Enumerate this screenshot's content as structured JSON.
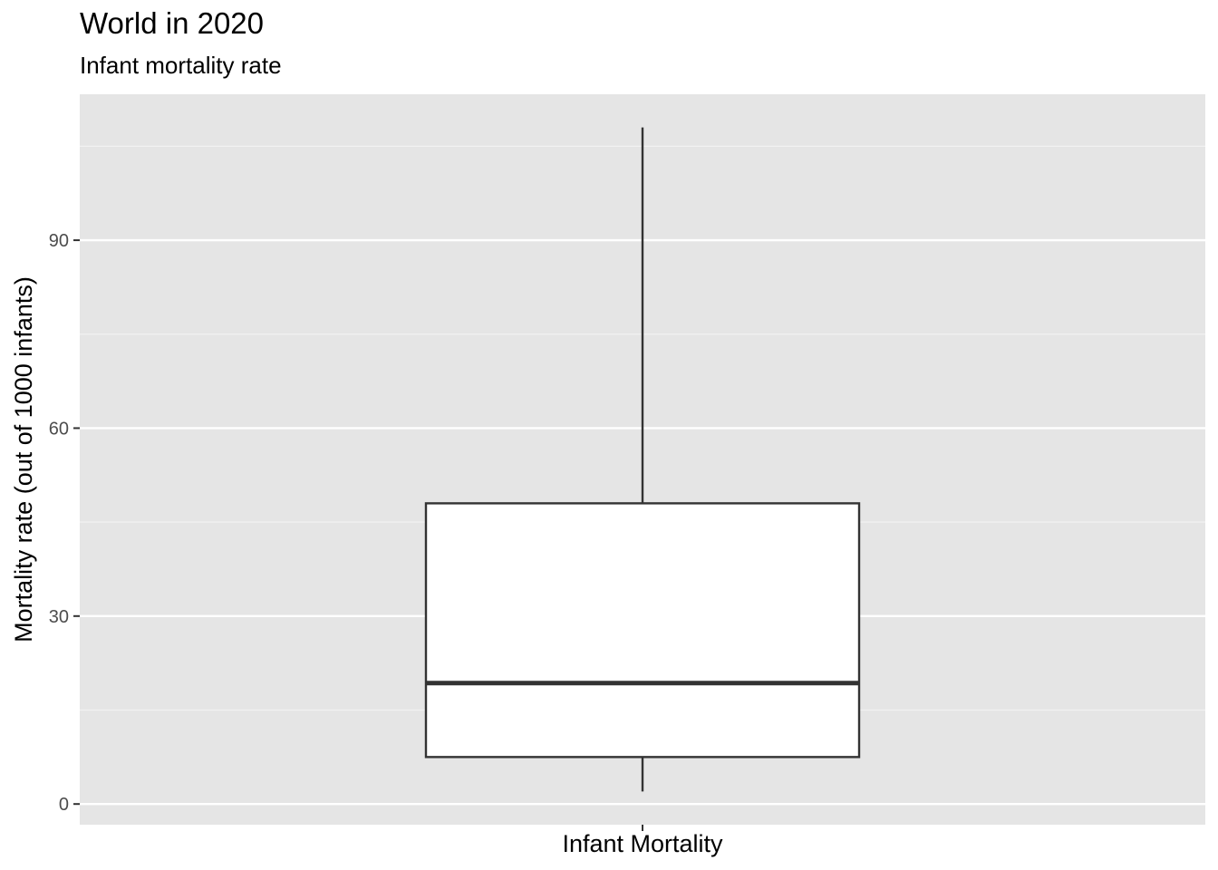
{
  "chart_data": {
    "type": "box",
    "title": "World in 2020",
    "subtitle": "Infant mortality rate",
    "xlabel": "",
    "ylabel": "Mortality rate (out of 1000 infants)",
    "categories": [
      "Infant Mortality"
    ],
    "boxes": [
      {
        "category": "Infant Mortality",
        "min": 2,
        "q1": 7.5,
        "median": 19.3,
        "q3": 48,
        "max": 108
      }
    ],
    "ylim": [
      -3.3,
      113.3
    ],
    "yticks": [
      0,
      30,
      60,
      90
    ],
    "grid": true,
    "legend": "none",
    "colors": {
      "panel_background": "#e5e5e5",
      "grid_major": "#ffffff",
      "grid_minor": "#f2f2f2",
      "box_fill": "#ffffff",
      "box_stroke": "#333333",
      "tick_label": "#4d4d4d"
    }
  }
}
